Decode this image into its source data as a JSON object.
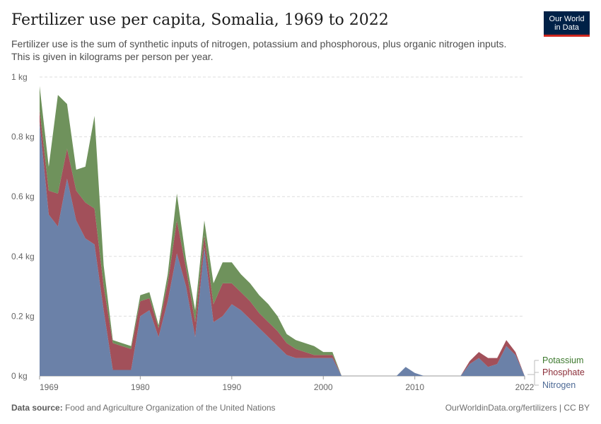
{
  "header": {
    "title": "Fertilizer use per capita, Somalia, 1969 to 2022",
    "subtitle": "Fertilizer use is the sum of synthetic inputs of nitrogen, potassium and phosphorous, plus organic nitrogen inputs. This is given in kilograms per person per year.",
    "logo_line1": "Our World",
    "logo_line2": "in Data"
  },
  "footer": {
    "source_label": "Data source:",
    "source_text": "Food and Agriculture Organization of the United Nations",
    "url_text": "OurWorldinData.org/fertilizers | CC BY"
  },
  "colors": {
    "nitrogen": "#6b81a8",
    "phosphate": "#a2505a",
    "potassium": "#6f925c",
    "nitrogen_label": "#4e6a96",
    "phosphate_label": "#8c2f3a",
    "potassium_label": "#3e7a2f",
    "grid": "#dddddd"
  },
  "chart_data": {
    "type": "area",
    "stacked": true,
    "x": [
      1969,
      1970,
      1971,
      1972,
      1973,
      1974,
      1975,
      1976,
      1977,
      1978,
      1979,
      1980,
      1981,
      1982,
      1983,
      1984,
      1985,
      1986,
      1987,
      1988,
      1989,
      1990,
      1991,
      1992,
      1993,
      1994,
      1995,
      1996,
      1997,
      1998,
      1999,
      2000,
      2001,
      2002,
      2003,
      2004,
      2005,
      2006,
      2007,
      2008,
      2009,
      2010,
      2011,
      2012,
      2013,
      2014,
      2015,
      2016,
      2017,
      2018,
      2019,
      2020,
      2021,
      2022
    ],
    "series": [
      {
        "name": "Nitrogen",
        "values": [
          0.85,
          0.54,
          0.5,
          0.66,
          0.52,
          0.46,
          0.44,
          0.22,
          0.02,
          0.02,
          0.02,
          0.2,
          0.22,
          0.13,
          0.25,
          0.41,
          0.3,
          0.13,
          0.43,
          0.18,
          0.2,
          0.24,
          0.22,
          0.19,
          0.16,
          0.13,
          0.1,
          0.07,
          0.06,
          0.06,
          0.06,
          0.06,
          0.06,
          0,
          0,
          0,
          0,
          0,
          0,
          0,
          0.03,
          0.01,
          0,
          0,
          0,
          0,
          0,
          0.04,
          0.06,
          0.03,
          0.04,
          0.1,
          0.07,
          0
        ],
        "color": "#6b81a8"
      },
      {
        "name": "Phosphate",
        "values": [
          0.04,
          0.08,
          0.11,
          0.1,
          0.1,
          0.12,
          0.12,
          0.08,
          0.09,
          0.08,
          0.07,
          0.05,
          0.04,
          0.03,
          0.06,
          0.11,
          0.06,
          0.05,
          0.04,
          0.06,
          0.11,
          0.07,
          0.06,
          0.06,
          0.05,
          0.05,
          0.05,
          0.04,
          0.03,
          0.02,
          0.01,
          0.01,
          0.01,
          0,
          0,
          0,
          0,
          0,
          0,
          0,
          0,
          0,
          0,
          0,
          0,
          0,
          0,
          0.01,
          0.02,
          0.03,
          0.02,
          0.02,
          0.01,
          0
        ],
        "color": "#a2505a"
      },
      {
        "name": "Potassium",
        "values": [
          0.08,
          0.08,
          0.33,
          0.15,
          0.07,
          0.12,
          0.31,
          0.07,
          0.01,
          0.01,
          0.01,
          0.02,
          0.02,
          0.01,
          0.03,
          0.09,
          0.03,
          0.04,
          0.05,
          0.07,
          0.07,
          0.07,
          0.06,
          0.06,
          0.06,
          0.06,
          0.05,
          0.03,
          0.03,
          0.03,
          0.03,
          0.01,
          0.01,
          0,
          0,
          0,
          0,
          0,
          0,
          0,
          0,
          0,
          0,
          0,
          0,
          0,
          0,
          0,
          0,
          0,
          0,
          0,
          0,
          0
        ],
        "color": "#6f925c"
      }
    ],
    "yticks": [
      "0 kg",
      "0.2 kg",
      "0.4 kg",
      "0.6 kg",
      "0.8 kg",
      "1 kg"
    ],
    "xticks": [
      "1969",
      "1980",
      "1990",
      "2000",
      "2010",
      "2022"
    ],
    "ylim": [
      0,
      1
    ],
    "xlim": [
      1969,
      2022
    ],
    "grid": "horizontal dashed",
    "legend_placement": "right, at line end",
    "legend": [
      "Potassium",
      "Phosphate",
      "Nitrogen"
    ]
  }
}
